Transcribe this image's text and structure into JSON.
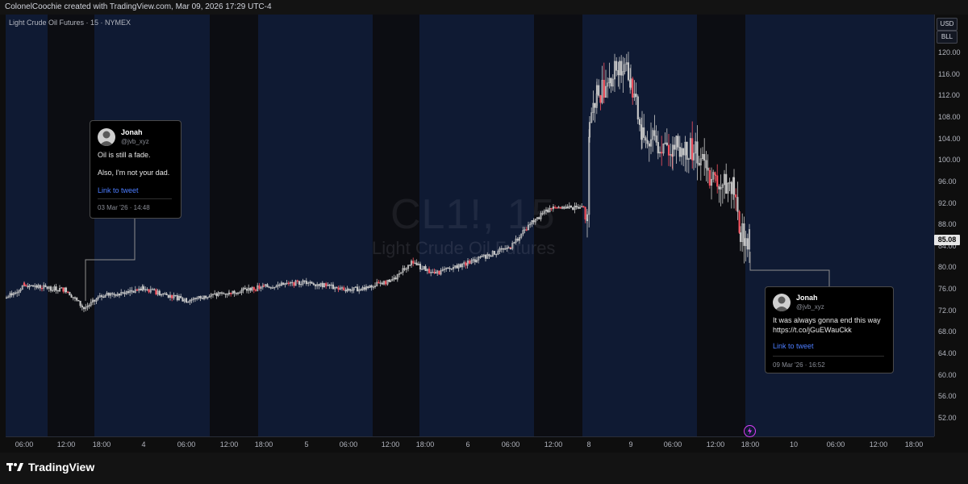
{
  "header": {
    "attribution": "ColonelCoochie created with TradingView.com, Mar 09, 2026 17:29 UTC-4"
  },
  "chart": {
    "symbol_line": "Light Crude Oil Futures · 15 · NYMEX",
    "watermark_symbol": "CL1!, 15",
    "watermark_name": "Light Crude Oil Futures",
    "currency_button": "USD",
    "unit_button": "BLL",
    "last_price": "85.08",
    "y_ticks": [
      "120.00",
      "116.00",
      "112.00",
      "108.00",
      "104.00",
      "100.00",
      "96.00",
      "92.00",
      "88.00",
      "84.00",
      "80.00",
      "76.00",
      "72.00",
      "68.00",
      "64.00",
      "60.00",
      "56.00",
      "52.00"
    ],
    "x_ticks": [
      "06:00",
      "12:00",
      "18:00",
      "4",
      "06:00",
      "12:00",
      "18:00",
      "5",
      "06:00",
      "12:00",
      "18:00",
      "6",
      "06:00",
      "12:00",
      "8",
      "9",
      "06:00",
      "12:00",
      "18:00",
      "10",
      "06:00",
      "12:00",
      "18:00"
    ],
    "colors": {
      "up": "#c9c9c9",
      "down": "#f7525f",
      "band_blue": "#0f1a33",
      "band_dark": "#0c0c10"
    }
  },
  "chart_data": {
    "type": "candlestick",
    "symbol": "CL1!",
    "interval": "15",
    "ylim": [
      50,
      122
    ],
    "x": [
      "Mar 3 00:00",
      "Mar 3 06:00",
      "Mar 3 12:00",
      "Mar 3 15:00",
      "Mar 3 18:00",
      "Mar 4 00:00",
      "Mar 4 06:00",
      "Mar 4 12:00",
      "Mar 4 18:00",
      "Mar 5 00:00",
      "Mar 5 06:00",
      "Mar 5 12:00",
      "Mar 5 15:00",
      "Mar 5 18:00",
      "Mar 6 00:00",
      "Mar 6 06:00",
      "Mar 6 10:00",
      "Mar 6 14:00",
      "Mar 6 17:00",
      "Mar 8 18:00",
      "Mar 8 21:00",
      "Mar 9 00:00",
      "Mar 9 01:00",
      "Mar 9 03:00",
      "Mar 9 06:00",
      "Mar 9 09:00",
      "Mar 9 12:00",
      "Mar 9 14:00",
      "Mar 9 16:00",
      "Mar 9 17:00"
    ],
    "close": [
      74.5,
      76.8,
      76.0,
      72.5,
      74.8,
      76.2,
      74.0,
      75.5,
      76.5,
      77.5,
      75.8,
      77.5,
      81.0,
      79.0,
      81.0,
      84.0,
      88.0,
      91.5,
      91.0,
      108.0,
      112.0,
      118.0,
      115.0,
      104.0,
      102.5,
      102.0,
      96.0,
      95.0,
      87.0,
      85.08
    ]
  },
  "tweets": [
    {
      "name": "Jonah",
      "handle": "@jvb_xyz",
      "line1": "Oil is still a fade.",
      "line2": "Also, I'm not your dad.",
      "link": "Link to tweet",
      "date": "03 Mar '26 · 14:48"
    },
    {
      "name": "Jonah",
      "handle": "@jvb_xyz",
      "line1": "It was always gonna end this way",
      "line2": "https://t.co/jGuEWauCkk",
      "link": "Link to tweet",
      "date": "09 Mar '26 · 16:52"
    }
  ],
  "footer": {
    "brand": "TradingView"
  }
}
